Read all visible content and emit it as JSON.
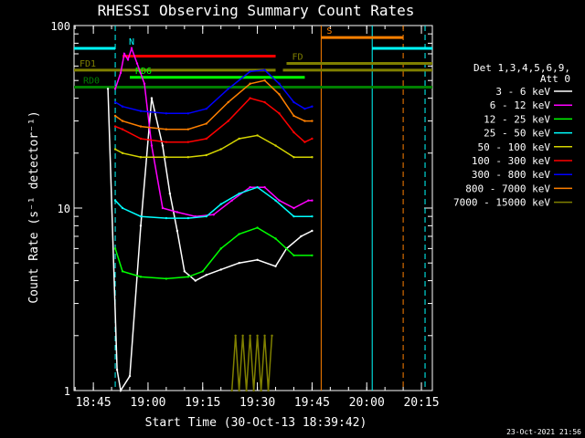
{
  "chart_data": {
    "type": "line",
    "title": "RHESSI Observing Summary Count Rates",
    "xlabel": "Start Time (30-Oct-13 18:39:42)",
    "ylabel": "Count Rate (s⁻¹ detector⁻¹)",
    "yscale": "log",
    "ylim": [
      1,
      100
    ],
    "xlim": [
      "18:39:42",
      "20:18:00"
    ],
    "x_ticks": [
      "18:45",
      "19:00",
      "19:15",
      "19:30",
      "19:45",
      "20:00",
      "20:15"
    ],
    "y_ticks": [
      "1",
      "10",
      "100"
    ],
    "timestamp": "23-Oct-2021 21:56",
    "legend": {
      "header": [
        "Det 1,3,4,5,6,9,",
        "Att 0"
      ],
      "placement": "right",
      "entries": [
        {
          "label": "3 - 6 keV",
          "color": "#ffffff"
        },
        {
          "label": "6 - 12 keV",
          "color": "#ff00ff"
        },
        {
          "label": "12 - 25 keV",
          "color": "#00ff00"
        },
        {
          "label": "25 - 50 keV",
          "color": "#00ffff"
        },
        {
          "label": "50 - 100 keV",
          "color": "#d4d400"
        },
        {
          "label": "100 - 300 keV",
          "color": "#ff0000"
        },
        {
          "label": "300 - 800 keV",
          "color": "#0000ff"
        },
        {
          "label": "800 - 7000 keV",
          "color": "#ff8000"
        },
        {
          "label": "7000 - 15000 keV",
          "color": "#808000"
        }
      ]
    },
    "flag_bars": [
      {
        "label": "N",
        "color": "#00ffff",
        "segments": [
          [
            "18:39:42",
            "18:51:00"
          ],
          [
            "20:01:30",
            "20:18:00"
          ]
        ],
        "level": 75
      },
      {
        "label": "S",
        "color": "#ff8000",
        "segments": [
          [
            "19:47:30",
            "20:10:00"
          ]
        ],
        "level": 86
      },
      {
        "label": "FD1",
        "color": "#808000",
        "segments": [
          [
            "18:39:42",
            "19:35:00"
          ],
          [
            "19:37:00",
            "20:18:00"
          ]
        ],
        "level": 57
      },
      {
        "label": "FD",
        "color": "#808000",
        "segments": [
          [
            "19:38:00",
            "20:18:00"
          ]
        ],
        "level": 62
      },
      {
        "label": "RD0",
        "color": "#008000",
        "segments": [
          [
            "18:39:42",
            "20:18:00"
          ]
        ],
        "level": 46
      },
      {
        "label": "RD6",
        "color": "#00ff00",
        "segments": [
          [
            "18:55:00",
            "19:43:00"
          ]
        ],
        "level": 52
      },
      {
        "label": "",
        "color": "#ff0000",
        "segments": [
          [
            "18:53:00",
            "19:35:00"
          ]
        ],
        "level": 68
      }
    ],
    "vertical_markers": [
      {
        "time": "18:51:00",
        "color": "#00ffff",
        "style": "dashed"
      },
      {
        "time": "19:47:30",
        "color": "#ff8000",
        "style": "solid"
      },
      {
        "time": "20:01:30",
        "color": "#00ffff",
        "style": "solid"
      },
      {
        "time": "20:10:00",
        "color": "#ff8000",
        "style": "dashed"
      },
      {
        "time": "20:16:00",
        "color": "#00ffff",
        "style": "dashed"
      }
    ],
    "series": [
      {
        "name": "3 - 6 keV",
        "color": "#ffffff",
        "x": [
          "18:49:00",
          "18:51:30",
          "18:52:30",
          "18:55:00",
          "18:58:00",
          "19:01:00",
          "19:04:00",
          "19:06:00",
          "19:08:00",
          "19:10:00",
          "19:13:00",
          "19:16:00",
          "19:20:00",
          "19:25:00",
          "19:30:00",
          "19:35:00",
          "19:38:00",
          "19:42:00",
          "19:45:00"
        ],
        "y": [
          45,
          1.3,
          1.0,
          1.2,
          8.0,
          40,
          22,
          12,
          7.5,
          4.5,
          4.0,
          4.3,
          4.6,
          5.0,
          5.2,
          4.8,
          6.0,
          7.0,
          7.5
        ]
      },
      {
        "name": "6 - 12 keV",
        "color": "#ff00ff",
        "x": [
          "18:51:00",
          "18:52:30",
          "18:53:30",
          "18:54:30",
          "18:55:30",
          "18:57:00",
          "18:59:00",
          "19:01:00",
          "19:04:00",
          "19:08:00",
          "19:13:00",
          "19:18:00",
          "19:23:00",
          "19:28:00",
          "19:32:00",
          "19:36:00",
          "19:40:00",
          "19:44:00",
          "19:45:00"
        ],
        "y": [
          45,
          55,
          70,
          65,
          75,
          62,
          48,
          22,
          10,
          9.5,
          9.0,
          9.2,
          11,
          13,
          13,
          11,
          10,
          11,
          11
        ]
      },
      {
        "name": "12 - 25 keV",
        "color": "#00ff00",
        "x": [
          "18:51:00",
          "18:53:00",
          "18:58:00",
          "19:05:00",
          "19:11:00",
          "19:15:00",
          "19:20:00",
          "19:25:00",
          "19:30:00",
          "19:35:00",
          "19:40:00",
          "19:45:00"
        ],
        "y": [
          6.0,
          4.5,
          4.2,
          4.1,
          4.2,
          4.5,
          6.0,
          7.2,
          7.8,
          6.8,
          5.5,
          5.5
        ]
      },
      {
        "name": "25 - 50 keV",
        "color": "#00ffff",
        "x": [
          "18:51:00",
          "18:53:00",
          "18:58:00",
          "19:05:00",
          "19:11:00",
          "19:16:00",
          "19:20:00",
          "19:25:00",
          "19:30:00",
          "19:35:00",
          "19:40:00",
          "19:45:00"
        ],
        "y": [
          11,
          10,
          9.0,
          8.8,
          8.8,
          9.0,
          10.5,
          12.0,
          13.0,
          11.0,
          9.0,
          9.0
        ]
      },
      {
        "name": "50 - 100 keV",
        "color": "#d4d400",
        "x": [
          "18:51:00",
          "18:53:00",
          "18:58:00",
          "19:05:00",
          "19:11:00",
          "19:16:00",
          "19:20:00",
          "19:25:00",
          "19:30:00",
          "19:35:00",
          "19:40:00",
          "19:45:00"
        ],
        "y": [
          21,
          20,
          19,
          19,
          19,
          19.5,
          21,
          24,
          25,
          22,
          19,
          19
        ]
      },
      {
        "name": "100 - 300 keV",
        "color": "#ff0000",
        "x": [
          "18:51:00",
          "18:53:00",
          "18:58:00",
          "19:05:00",
          "19:11:00",
          "19:16:00",
          "19:22:00",
          "19:28:00",
          "19:32:00",
          "19:36:00",
          "19:40:00",
          "19:43:00",
          "19:45:00"
        ],
        "y": [
          28,
          27,
          24,
          23,
          23,
          24,
          30,
          40,
          38,
          33,
          26,
          23,
          24
        ]
      },
      {
        "name": "300 - 800 keV",
        "color": "#0000ff",
        "x": [
          "18:51:00",
          "18:53:00",
          "18:58:00",
          "19:05:00",
          "19:11:00",
          "19:16:00",
          "19:22:00",
          "19:28:00",
          "19:32:00",
          "19:36:00",
          "19:40:00",
          "19:43:00",
          "19:45:00"
        ],
        "y": [
          38,
          36,
          34,
          33,
          33,
          35,
          45,
          56,
          57,
          48,
          38,
          35,
          36
        ]
      },
      {
        "name": "800 - 7000 keV",
        "color": "#ff8000",
        "x": [
          "18:51:00",
          "18:53:00",
          "18:58:00",
          "19:05:00",
          "19:11:00",
          "19:16:00",
          "19:22:00",
          "19:28:00",
          "19:32:00",
          "19:36:00",
          "19:40:00",
          "19:43:00",
          "19:45:00"
        ],
        "y": [
          32,
          30,
          28,
          27,
          27,
          29,
          38,
          48,
          50,
          42,
          32,
          30,
          30
        ]
      },
      {
        "name": "7000 - 15000 keV",
        "color": "#808000",
        "x": [
          "19:23:00",
          "19:24:00",
          "19:25:00",
          "19:26:00",
          "19:27:00",
          "19:28:00",
          "19:29:00",
          "19:30:00",
          "19:31:00",
          "19:32:00",
          "19:33:00",
          "19:34:00"
        ],
        "y": [
          1.0,
          2.0,
          1.0,
          2.0,
          1.0,
          2.0,
          1.0,
          2.0,
          1.0,
          2.0,
          1.0,
          2.0
        ]
      }
    ]
  }
}
